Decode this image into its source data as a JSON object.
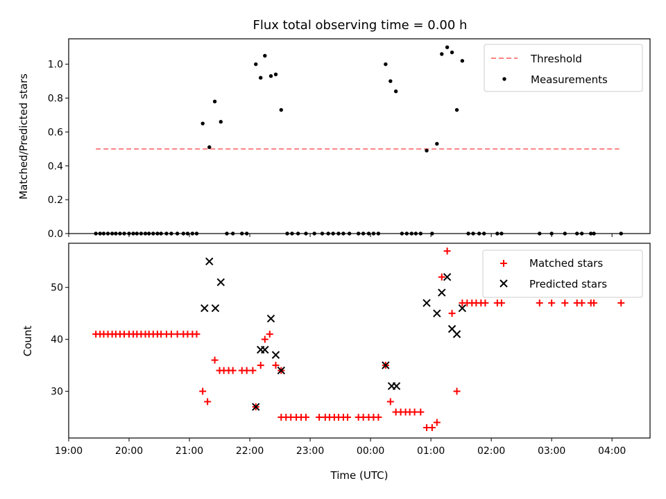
{
  "chart_data": [
    {
      "type": "scatter",
      "title": "Flux total observing time = 0.00 h",
      "xlabel": "",
      "ylabel": "Matched/Predicted stars",
      "xlim_hours": [
        19.0,
        28.63
      ],
      "ylim": [
        0.0,
        1.15
      ],
      "yticks": [
        0.0,
        0.2,
        0.4,
        0.6,
        0.8,
        1.0
      ],
      "ytick_labels": [
        "0.0",
        "0.2",
        "0.4",
        "0.6",
        "0.8",
        "1.0"
      ],
      "legend_position": "top-right",
      "threshold": {
        "name": "Threshold",
        "value": 0.5,
        "x_range": [
          19.45,
          28.12
        ],
        "color": "#ff8080"
      },
      "series": [
        {
          "name": "Measurements",
          "color": "#000000",
          "marker": "dot",
          "points": [
            [
              19.45,
              0
            ],
            [
              19.52,
              0
            ],
            [
              19.58,
              0
            ],
            [
              19.65,
              0
            ],
            [
              19.72,
              0
            ],
            [
              19.78,
              0
            ],
            [
              19.85,
              0
            ],
            [
              19.92,
              0
            ],
            [
              20.0,
              0
            ],
            [
              20.07,
              0
            ],
            [
              20.13,
              0
            ],
            [
              20.2,
              0
            ],
            [
              20.27,
              0
            ],
            [
              20.33,
              0
            ],
            [
              20.4,
              0
            ],
            [
              20.47,
              0
            ],
            [
              20.53,
              0
            ],
            [
              20.62,
              0
            ],
            [
              20.7,
              0
            ],
            [
              20.8,
              0
            ],
            [
              20.9,
              0
            ],
            [
              20.97,
              0
            ],
            [
              21.05,
              0
            ],
            [
              21.12,
              0
            ],
            [
              21.22,
              0.65
            ],
            [
              21.33,
              0.51
            ],
            [
              21.42,
              0.78
            ],
            [
              21.52,
              0.66
            ],
            [
              21.62,
              0
            ],
            [
              21.72,
              0
            ],
            [
              21.87,
              0
            ],
            [
              21.95,
              0
            ],
            [
              22.1,
              1.0
            ],
            [
              22.18,
              0.92
            ],
            [
              22.25,
              1.05
            ],
            [
              22.35,
              0.93
            ],
            [
              22.43,
              0.94
            ],
            [
              22.52,
              0.73
            ],
            [
              22.62,
              0
            ],
            [
              22.7,
              0
            ],
            [
              22.8,
              0
            ],
            [
              22.93,
              0
            ],
            [
              23.07,
              0
            ],
            [
              23.2,
              0
            ],
            [
              23.3,
              0
            ],
            [
              23.38,
              0
            ],
            [
              23.47,
              0
            ],
            [
              23.55,
              0
            ],
            [
              23.65,
              0
            ],
            [
              23.8,
              0
            ],
            [
              23.88,
              0
            ],
            [
              23.97,
              0
            ],
            [
              24.05,
              0
            ],
            [
              24.13,
              0
            ],
            [
              24.25,
              1.0
            ],
            [
              24.33,
              0.9
            ],
            [
              24.42,
              0.84
            ],
            [
              24.52,
              0
            ],
            [
              24.6,
              0
            ],
            [
              24.68,
              0
            ],
            [
              24.75,
              0
            ],
            [
              24.83,
              0
            ],
            [
              24.93,
              0.49
            ],
            [
              25.02,
              0
            ],
            [
              25.1,
              0.53
            ],
            [
              25.18,
              1.06
            ],
            [
              25.27,
              1.1
            ],
            [
              25.35,
              1.07
            ],
            [
              25.43,
              0.73
            ],
            [
              25.52,
              1.02
            ],
            [
              25.62,
              0
            ],
            [
              25.7,
              0
            ],
            [
              25.8,
              0
            ],
            [
              25.88,
              0
            ],
            [
              26.1,
              0
            ],
            [
              26.17,
              0
            ],
            [
              26.8,
              0
            ],
            [
              27.0,
              0
            ],
            [
              27.22,
              0
            ],
            [
              27.42,
              0
            ],
            [
              27.5,
              0
            ],
            [
              27.65,
              0
            ],
            [
              27.7,
              0
            ],
            [
              28.15,
              0
            ]
          ]
        }
      ]
    },
    {
      "type": "scatter",
      "title": "",
      "xlabel": "Time (UTC)",
      "ylabel": "Count",
      "xlim_hours": [
        19.0,
        28.63
      ],
      "ylim": [
        21.0,
        58.5
      ],
      "yticks": [
        30,
        40,
        50
      ],
      "ytick_labels": [
        "30",
        "40",
        "50"
      ],
      "xticks_hours": [
        19,
        20,
        21,
        22,
        23,
        24,
        25,
        26,
        27,
        28
      ],
      "xtick_labels": [
        "19:00",
        "20:00",
        "21:00",
        "22:00",
        "23:00",
        "00:00",
        "01:00",
        "02:00",
        "03:00",
        "04:00"
      ],
      "legend_position": "top-right",
      "series": [
        {
          "name": "Matched stars",
          "color": "#ff0000",
          "marker": "plus",
          "points": [
            [
              19.45,
              41
            ],
            [
              19.52,
              41
            ],
            [
              19.58,
              41
            ],
            [
              19.65,
              41
            ],
            [
              19.72,
              41
            ],
            [
              19.78,
              41
            ],
            [
              19.85,
              41
            ],
            [
              19.92,
              41
            ],
            [
              20.0,
              41
            ],
            [
              20.07,
              41
            ],
            [
              20.13,
              41
            ],
            [
              20.2,
              41
            ],
            [
              20.27,
              41
            ],
            [
              20.33,
              41
            ],
            [
              20.4,
              41
            ],
            [
              20.47,
              41
            ],
            [
              20.53,
              41
            ],
            [
              20.62,
              41
            ],
            [
              20.7,
              41
            ],
            [
              20.8,
              41
            ],
            [
              20.9,
              41
            ],
            [
              20.97,
              41
            ],
            [
              21.05,
              41
            ],
            [
              21.12,
              41
            ],
            [
              21.22,
              30
            ],
            [
              21.3,
              28
            ],
            [
              21.42,
              36
            ],
            [
              21.5,
              34
            ],
            [
              21.57,
              34
            ],
            [
              21.65,
              34
            ],
            [
              21.72,
              34
            ],
            [
              21.87,
              34
            ],
            [
              21.95,
              34
            ],
            [
              22.05,
              34
            ],
            [
              22.1,
              27
            ],
            [
              22.18,
              35
            ],
            [
              22.25,
              40
            ],
            [
              22.33,
              41
            ],
            [
              22.43,
              35
            ],
            [
              22.52,
              34
            ],
            [
              22.52,
              25
            ],
            [
              22.6,
              25
            ],
            [
              22.68,
              25
            ],
            [
              22.77,
              25
            ],
            [
              22.85,
              25
            ],
            [
              22.93,
              25
            ],
            [
              23.15,
              25
            ],
            [
              23.25,
              25
            ],
            [
              23.32,
              25
            ],
            [
              23.4,
              25
            ],
            [
              23.47,
              25
            ],
            [
              23.55,
              25
            ],
            [
              23.62,
              25
            ],
            [
              23.8,
              25
            ],
            [
              23.88,
              25
            ],
            [
              23.97,
              25
            ],
            [
              24.05,
              25
            ],
            [
              24.13,
              25
            ],
            [
              24.25,
              35
            ],
            [
              24.33,
              28
            ],
            [
              24.42,
              26
            ],
            [
              24.5,
              26
            ],
            [
              24.58,
              26
            ],
            [
              24.65,
              26
            ],
            [
              24.73,
              26
            ],
            [
              24.83,
              26
            ],
            [
              24.93,
              23
            ],
            [
              25.02,
              23
            ],
            [
              25.1,
              24
            ],
            [
              25.18,
              52
            ],
            [
              25.27,
              57
            ],
            [
              25.35,
              45
            ],
            [
              25.43,
              30
            ],
            [
              25.52,
              47
            ],
            [
              25.6,
              47
            ],
            [
              25.68,
              47
            ],
            [
              25.75,
              47
            ],
            [
              25.83,
              47
            ],
            [
              25.9,
              47
            ],
            [
              26.1,
              47
            ],
            [
              26.17,
              47
            ],
            [
              26.8,
              47
            ],
            [
              27.0,
              47
            ],
            [
              27.22,
              47
            ],
            [
              27.42,
              47
            ],
            [
              27.5,
              47
            ],
            [
              27.65,
              47
            ],
            [
              27.7,
              47
            ],
            [
              28.15,
              47
            ]
          ]
        },
        {
          "name": "Predicted stars",
          "color": "#000000",
          "marker": "x",
          "points": [
            [
              21.25,
              46
            ],
            [
              21.33,
              55
            ],
            [
              21.43,
              46
            ],
            [
              21.52,
              51
            ],
            [
              22.1,
              27
            ],
            [
              22.18,
              38
            ],
            [
              22.25,
              38
            ],
            [
              22.35,
              44
            ],
            [
              22.43,
              37
            ],
            [
              22.52,
              34
            ],
            [
              24.25,
              35
            ],
            [
              24.35,
              31
            ],
            [
              24.43,
              31
            ],
            [
              24.93,
              47
            ],
            [
              25.1,
              45
            ],
            [
              25.18,
              49
            ],
            [
              25.27,
              52
            ],
            [
              25.35,
              42
            ],
            [
              25.43,
              41
            ],
            [
              25.52,
              46
            ]
          ]
        }
      ]
    }
  ]
}
